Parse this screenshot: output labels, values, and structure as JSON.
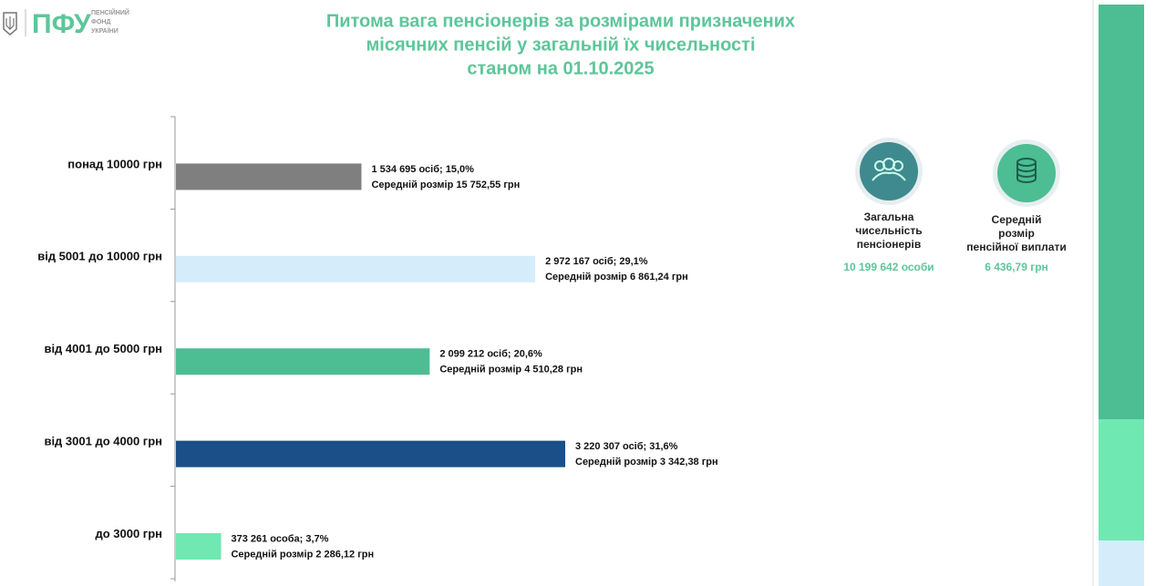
{
  "header": {
    "logo": "ПФУ",
    "org_lines": [
      "ПЕНСІЙНИЙ",
      "ФОНД",
      "УКРАЇНИ"
    ]
  },
  "chart_data": {
    "type": "bar",
    "orientation": "horizontal",
    "title": [
      "Питома вага пенсіонерів за розмірами призначених",
      "місячних пенсій у загальній їх чисельності",
      "станом на 01.10.2025"
    ],
    "categories": [
      "понад 10000 грн",
      "від 5001 до 10000 грн",
      "від 4001 до 5000 грн",
      "від 3001 до 4000 грн",
      "до 3000 грн"
    ],
    "values": [
      1534695,
      2972167,
      2099212,
      3220307,
      373261
    ],
    "value_labels": [
      "1 534 695 осіб;  15,0%",
      "2 972 167 осіб; 29,1%",
      "2 099 212 осіб; 20,6%",
      "3 220 307 осіб; 31,6%",
      "373 261 особа; 3,7%"
    ],
    "sublabels": [
      "Середній розмір 15 752,55 грн",
      "Середній розмір 6 861,24 грн",
      "Середній розмір 4 510,28 грн",
      "Середній розмір 3 342,38 грн",
      "Середній розмір 2 286,12 грн"
    ],
    "colors": [
      "#7f7f7f",
      "#d5ecfa",
      "#4dbd94",
      "#1a4f87",
      "#6fe8b1"
    ]
  },
  "summary": [
    {
      "label": [
        "Загальна",
        "чисельність",
        "пенсіонерів"
      ],
      "value": "10 199 642 особи"
    },
    {
      "label": [
        "Середній",
        "розмір",
        "пенсійної виплати"
      ],
      "value": "6 436,79 грн"
    }
  ]
}
